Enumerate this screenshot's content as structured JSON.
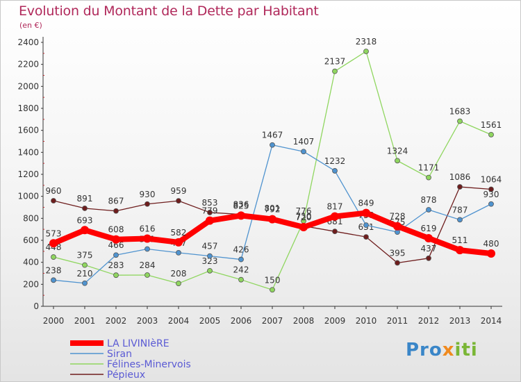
{
  "title": "Evolution du Montant de la Dette par Habitant",
  "subtitle": "(en €)",
  "logo": "Proxiti",
  "chart_data": {
    "type": "line",
    "title": "Evolution du Montant de la Dette par Habitant",
    "subtitle": "(en €)",
    "xlabel": "",
    "ylabel": "",
    "x": [
      "2000",
      "2001",
      "2002",
      "2003",
      "2004",
      "2005",
      "2006",
      "2007",
      "2008",
      "2009",
      "2010",
      "2011",
      "2012",
      "2013",
      "2014"
    ],
    "ylim": [
      0,
      2400
    ],
    "yticks": [
      0,
      200,
      400,
      600,
      800,
      1000,
      1200,
      1400,
      1600,
      1800,
      2000,
      2200,
      2400
    ],
    "grid": false,
    "legend_position": "bottom-left",
    "series": [
      {
        "name": "LA LIVINIèRE",
        "color": "#ff0000",
        "values": [
          573,
          693,
          608,
          616,
          582,
          779,
          825,
          792,
          720,
          817,
          849,
          728,
          619,
          511,
          480
        ]
      },
      {
        "name": "Siran",
        "color": "#4f93cf",
        "values": [
          238,
          210,
          466,
          521,
          487,
          457,
          426,
          1467,
          1407,
          1232,
          738,
          675,
          878,
          787,
          930
        ]
      },
      {
        "name": "Félines-Minervois",
        "color": "#8fd65f",
        "values": [
          448,
          375,
          283,
          284,
          208,
          323,
          242,
          150,
          776,
          2137,
          2318,
          1324,
          1171,
          1683,
          1561
        ]
      },
      {
        "name": "Pépieux",
        "color": "#6e1d1d",
        "values": [
          960,
          891,
          867,
          930,
          959,
          853,
          836,
          801,
          730,
          681,
          631,
          395,
          437,
          1086,
          1064
        ]
      }
    ]
  }
}
